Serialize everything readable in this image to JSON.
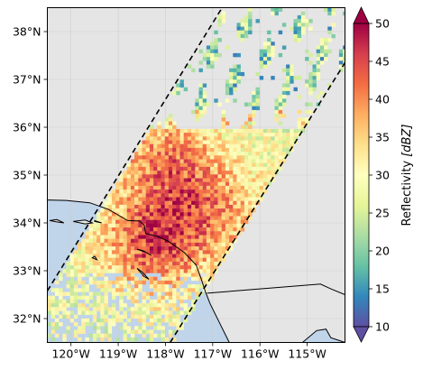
{
  "chart_data": {
    "type": "heatmap",
    "title": "",
    "xlabel": "",
    "ylabel": "",
    "xlim": [
      -120.5,
      -114.2
    ],
    "ylim": [
      31.5,
      38.5
    ],
    "x_ticks": [
      -120,
      -119,
      -118,
      -117,
      -116,
      -115
    ],
    "x_tick_labels": [
      "120°W",
      "119°W",
      "118°W",
      "117°W",
      "116°W",
      "115°W"
    ],
    "y_ticks": [
      32,
      33,
      34,
      35,
      36,
      37,
      38
    ],
    "y_tick_labels": [
      "32°N",
      "33°N",
      "34°N",
      "35°N",
      "36°N",
      "37°N",
      "38°N"
    ],
    "grid": true,
    "colorbar": {
      "label_prefix": "Reflectivity ",
      "label_unit": "[dBZ]",
      "colormap": "Spectral_r",
      "range": [
        10,
        50
      ],
      "ticks": [
        10,
        15,
        20,
        25,
        30,
        35,
        40,
        45,
        50
      ],
      "extend": "both"
    },
    "swath": {
      "edge_style": "dashed",
      "edge_color": "#000000",
      "edges_lonlat": [
        [
          [
            -120.5,
            32.58
          ],
          [
            -116.8,
            38.5
          ]
        ],
        [
          [
            -117.9,
            31.5
          ],
          [
            -114.2,
            37.35
          ]
        ]
      ]
    },
    "reflectivity_field": [
      {
        "region": "swath-interior",
        "approx_dbz": 28
      },
      {
        "region": "coastal-la-core",
        "center": [
          -118.3,
          33.6
        ],
        "approx_dbz": 44
      },
      {
        "region": "central-valley-band",
        "center": [
          -118.0,
          35.3
        ],
        "approx_dbz": 40
      },
      {
        "region": "southern-ca-band",
        "center": [
          -117.0,
          34.3
        ],
        "approx_dbz": 38
      },
      {
        "region": "northern-sparse-cells",
        "approx_dbz": 22
      }
    ],
    "colors": {
      "land": "#e5e5e5",
      "ocean": "#c0d4ea",
      "coastline": "#000000",
      "grid": "#cfcfcf"
    }
  }
}
